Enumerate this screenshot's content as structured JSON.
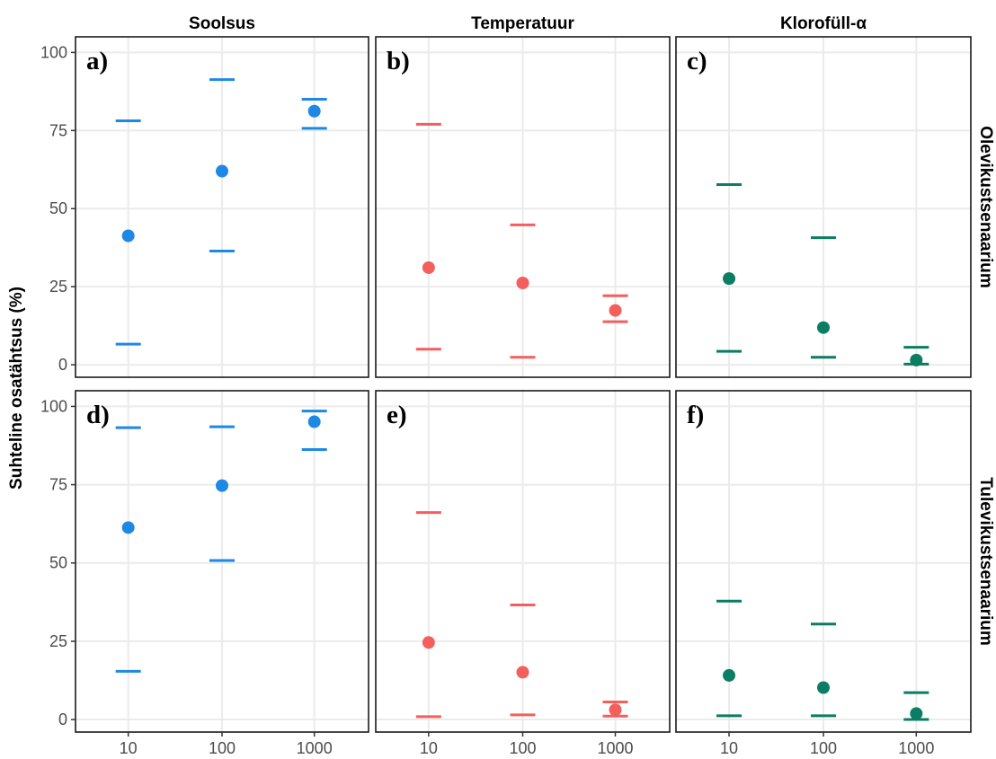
{
  "chart_data": {
    "type": "scatter",
    "description_type": "faceted point range (mean with interval bounds)",
    "ylabel": "Suhteline osatähtsus (%)",
    "xlabel": "",
    "x": [
      "10",
      "100",
      "1000"
    ],
    "y_ticks": [
      "0",
      "25",
      "50",
      "75",
      "100"
    ],
    "ylim": [
      -4,
      105
    ],
    "grid": true,
    "columns": [
      "Soolsus",
      "Temperatuur",
      "Klorofüll-α"
    ],
    "rows": [
      "Olevikustsenaarium",
      "Tulevikustsenaarium"
    ],
    "colors": {
      "Soolsus": "#1e88e5",
      "Temperatuur": "#f25f5c",
      "Klorofüll-α": "#0b7d62"
    },
    "panels": [
      {
        "tag": "a)",
        "column": "Soolsus",
        "row": "Olevikustsenaarium",
        "points": [
          {
            "x": "10",
            "mean": 41.3,
            "lower": 6.6,
            "upper": 78.1
          },
          {
            "x": "100",
            "mean": 62.0,
            "lower": 36.4,
            "upper": 91.3
          },
          {
            "x": "1000",
            "mean": 81.2,
            "lower": 75.7,
            "upper": 85.0
          }
        ]
      },
      {
        "tag": "b)",
        "column": "Temperatuur",
        "row": "Olevikustsenaarium",
        "points": [
          {
            "x": "10",
            "mean": 31.1,
            "lower": 5.0,
            "upper": 77.0
          },
          {
            "x": "100",
            "mean": 26.2,
            "lower": 2.4,
            "upper": 44.8
          },
          {
            "x": "1000",
            "mean": 17.4,
            "lower": 13.8,
            "upper": 22.1
          }
        ]
      },
      {
        "tag": "c)",
        "column": "Klorofüll-α",
        "row": "Olevikustsenaarium",
        "points": [
          {
            "x": "10",
            "mean": 27.6,
            "lower": 4.3,
            "upper": 57.7
          },
          {
            "x": "100",
            "mean": 11.9,
            "lower": 2.4,
            "upper": 40.7
          },
          {
            "x": "1000",
            "mean": 1.5,
            "lower": 0.2,
            "upper": 5.6
          }
        ]
      },
      {
        "tag": "d)",
        "column": "Soolsus",
        "row": "Tulevikustsenaarium",
        "points": [
          {
            "x": "10",
            "mean": 61.3,
            "lower": 15.4,
            "upper": 93.2
          },
          {
            "x": "100",
            "mean": 74.7,
            "lower": 50.8,
            "upper": 93.5
          },
          {
            "x": "1000",
            "mean": 95.1,
            "lower": 86.2,
            "upper": 98.5
          }
        ]
      },
      {
        "tag": "e)",
        "column": "Temperatuur",
        "row": "Tulevikustsenaarium",
        "points": [
          {
            "x": "10",
            "mean": 24.6,
            "lower": 0.9,
            "upper": 66.1
          },
          {
            "x": "100",
            "mean": 15.1,
            "lower": 1.5,
            "upper": 36.6
          },
          {
            "x": "1000",
            "mean": 3.1,
            "lower": 1.1,
            "upper": 5.6
          }
        ]
      },
      {
        "tag": "f)",
        "column": "Klorofüll-α",
        "row": "Tulevikustsenaarium",
        "points": [
          {
            "x": "10",
            "mean": 14.1,
            "lower": 1.2,
            "upper": 37.8
          },
          {
            "x": "100",
            "mean": 10.2,
            "lower": 1.2,
            "upper": 30.5
          },
          {
            "x": "1000",
            "mean": 1.9,
            "lower": 0.0,
            "upper": 8.6
          }
        ]
      }
    ]
  }
}
